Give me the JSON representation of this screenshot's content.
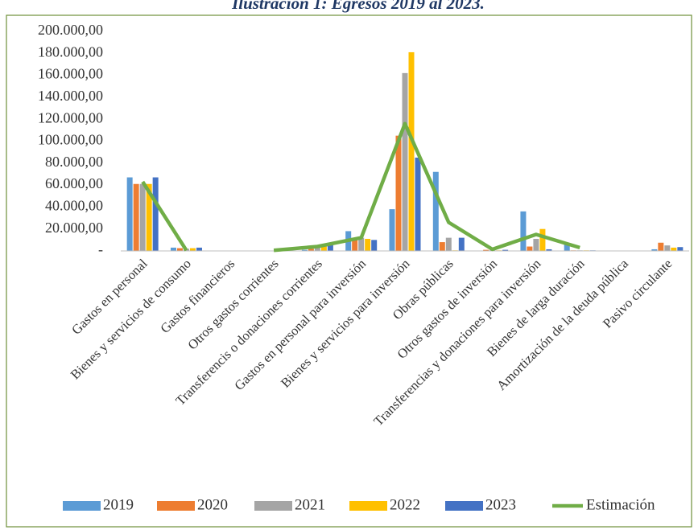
{
  "chart_data": {
    "type": "bar",
    "title": "Ilustración 1: Egresos 2019 al 2023.",
    "categories": [
      "Gastos en personal",
      "Bienes y servicios de consumo",
      "Gastos financieros",
      "Otros gastos corrientes",
      "Transferencis o donaciones corrientes",
      "Gastos en personal para inversión",
      "Bienes y servicios para inversión",
      "Obras públicas",
      "Otros gastos de inversión",
      "Transferencias y donaciones para inversión",
      "Bienes de larga duración",
      "Amortización de la deuda pública",
      "Pasivo circulante"
    ],
    "series": [
      {
        "name": "2019",
        "color": "#5b9bd5",
        "values": [
          67000,
          3000,
          0,
          0,
          1000,
          18000,
          38000,
          72000,
          0,
          36000,
          7000,
          0,
          1500
        ]
      },
      {
        "name": "2020",
        "color": "#ed7d31",
        "values": [
          61000,
          2500,
          0,
          0,
          2000,
          10000,
          105000,
          8000,
          1000,
          4000,
          500,
          0,
          7500
        ]
      },
      {
        "name": "2021",
        "color": "#a5a5a5",
        "values": [
          61000,
          2000,
          0,
          0,
          3000,
          12000,
          162000,
          12000,
          1000,
          11000,
          500,
          0,
          5000
        ]
      },
      {
        "name": "2022",
        "color": "#ffc000",
        "values": [
          61000,
          2500,
          0,
          0,
          4000,
          11000,
          181000,
          500,
          500,
          20000,
          500,
          0,
          3000
        ]
      },
      {
        "name": "2023",
        "color": "#4472c4",
        "values": [
          67000,
          3000,
          0,
          0,
          6000,
          10000,
          85000,
          12000,
          1000,
          1500,
          500,
          0,
          3500
        ]
      },
      {
        "name": "Estimación",
        "type": "line",
        "color": "#70ad47",
        "values": [
          63000,
          500,
          null,
          500,
          4000,
          12000,
          116000,
          26000,
          1500,
          15000,
          3000,
          null,
          null
        ]
      }
    ],
    "ylim": [
      0,
      200000
    ],
    "yticks": [
      {
        "value": 0,
        "label": "-"
      },
      {
        "value": 20000,
        "label": "20.000,00"
      },
      {
        "value": 40000,
        "label": "40.000,00"
      },
      {
        "value": 60000,
        "label": "60.000,00"
      },
      {
        "value": 80000,
        "label": "80.000,00"
      },
      {
        "value": 100000,
        "label": "100.000,00"
      },
      {
        "value": 120000,
        "label": "120.000,00"
      },
      {
        "value": 140000,
        "label": "140.000,00"
      },
      {
        "value": 160000,
        "label": "160.000,00"
      },
      {
        "value": 180000,
        "label": "180.000,00"
      },
      {
        "value": 200000,
        "label": "200.000,00"
      }
    ],
    "grid": false,
    "legend": "bottom"
  }
}
